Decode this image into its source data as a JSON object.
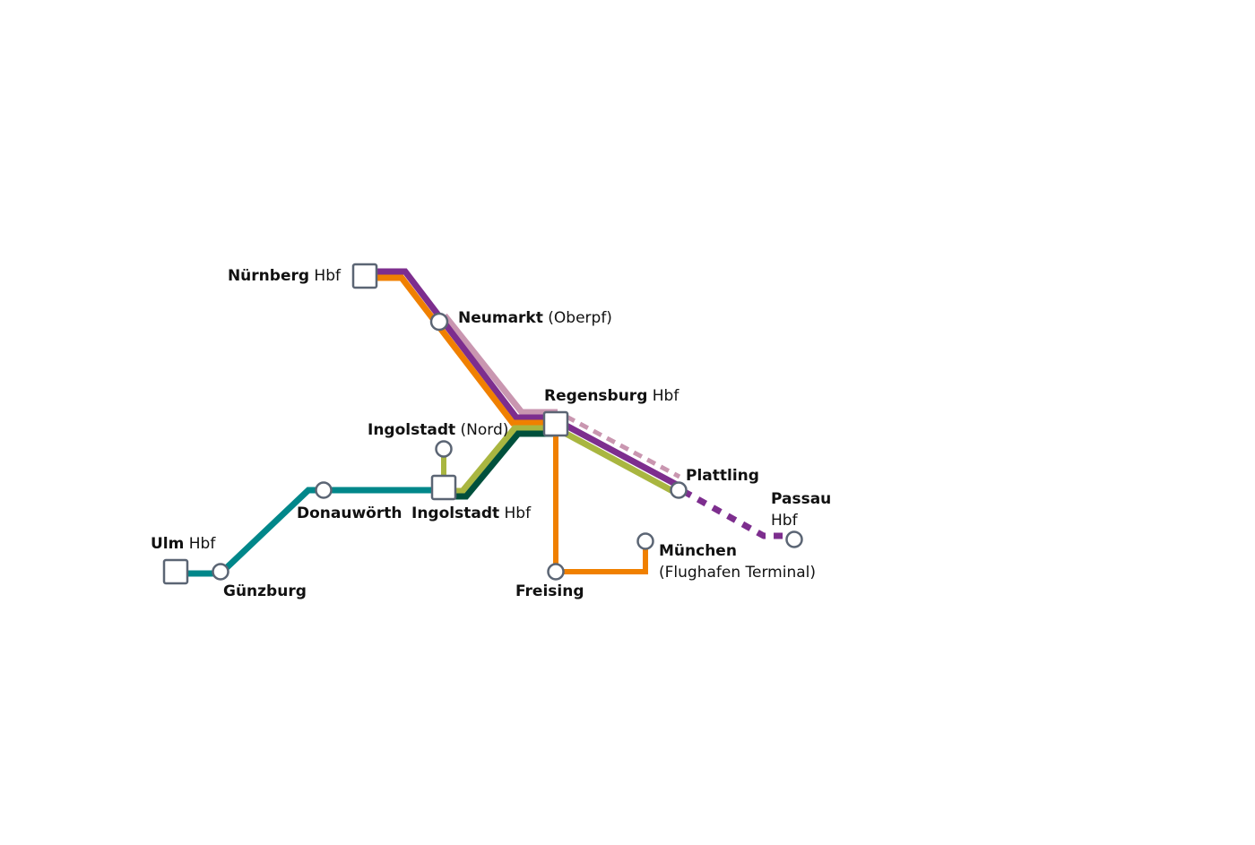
{
  "colors": {
    "purple": "#7d2e8e",
    "orange": "#f08000",
    "pink": "#c996b0",
    "olive": "#a9b640",
    "dark_green": "#00503c",
    "teal": "#00878a",
    "station_stroke": "#5b6574"
  },
  "stations": {
    "nuernberg": {
      "bold": "Nürnberg",
      "regular": " Hbf"
    },
    "neumarkt": {
      "bold": "Neumarkt",
      "regular": " (Oberpf)"
    },
    "regensburg": {
      "bold": "Regensburg",
      "regular": " Hbf"
    },
    "ingolstadt_nord": {
      "bold": "Ingolstadt",
      "regular": " (Nord)"
    },
    "ingolstadt_hbf": {
      "bold": "Ingolstadt",
      "regular": " Hbf"
    },
    "donauwoerth": {
      "bold": "Donauwörth"
    },
    "ulm": {
      "bold": "Ulm",
      "regular": " Hbf"
    },
    "guenzburg": {
      "bold": "Günzburg"
    },
    "plattling": {
      "bold": "Plattling"
    },
    "passau": {
      "bold": "Passau",
      "regular": "Hbf"
    },
    "freising": {
      "bold": "Freising"
    },
    "muenchen": {
      "bold": "München",
      "regular": "(Flughafen Terminal)"
    }
  }
}
